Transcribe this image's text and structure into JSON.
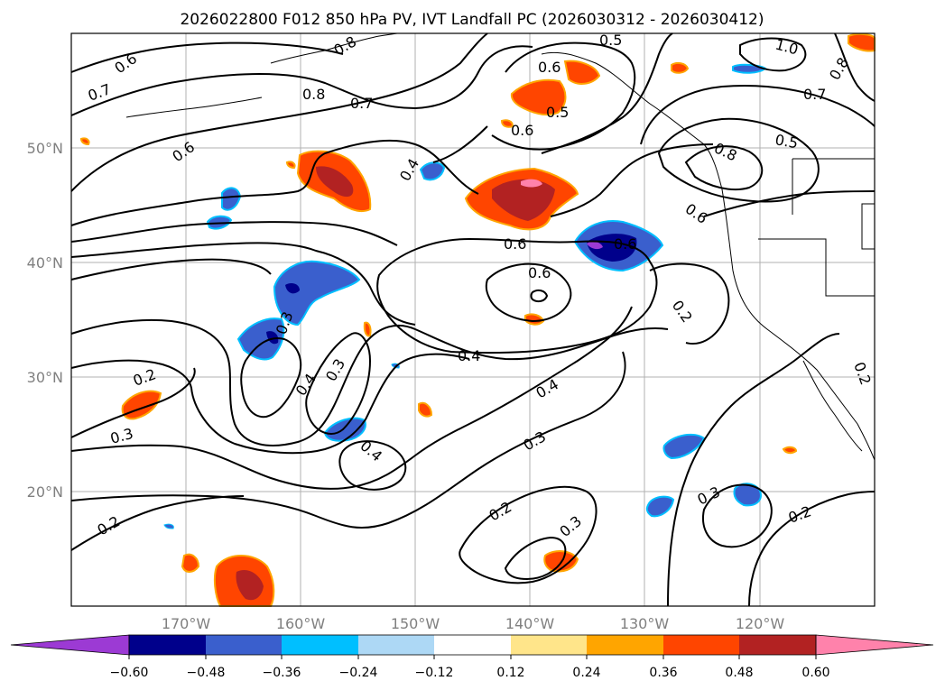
{
  "title": "2026022800 F012 850 hPa PV, IVT Landfall PC (2026030312 - 2026030412)",
  "lat_labels": [
    "50°N",
    "40°N",
    "30°N",
    "20°N"
  ],
  "lon_labels": [
    "170°W",
    "160°W",
    "150°W",
    "140°W",
    "130°W",
    "120°W"
  ],
  "colorbar": {
    "tick_labels": [
      "−0.60",
      "−0.48",
      "−0.36",
      "−0.24",
      "−0.12",
      "0.12",
      "0.24",
      "0.36",
      "0.48",
      "0.60"
    ],
    "colors": [
      "#9c3ad4",
      "#00008b",
      "#3a5fcd",
      "#00bfff",
      "#add8f5",
      "#ffffff",
      "#ffe58a",
      "#ffa500",
      "#ff4500",
      "#b22222",
      "#ff82ab"
    ]
  },
  "contour_labels": [
    "0.6",
    "0.7",
    "0.8",
    "0.7",
    "0.6",
    "0.8",
    "0.6",
    "0.5",
    "0.6",
    "0.4",
    "0.6",
    "0.6",
    "0.3",
    "0.4",
    "0.3",
    "0.4",
    "0.4",
    "0.4",
    "0.3",
    "0.2",
    "0.3",
    "0.2",
    "0.3",
    "0.2",
    "0.3",
    "0.2",
    "0.2",
    "1.0",
    "0.8",
    "0.7",
    "0.5",
    "0.8",
    "0.6",
    "0.2",
    "0.5",
    "0.6"
  ]
}
